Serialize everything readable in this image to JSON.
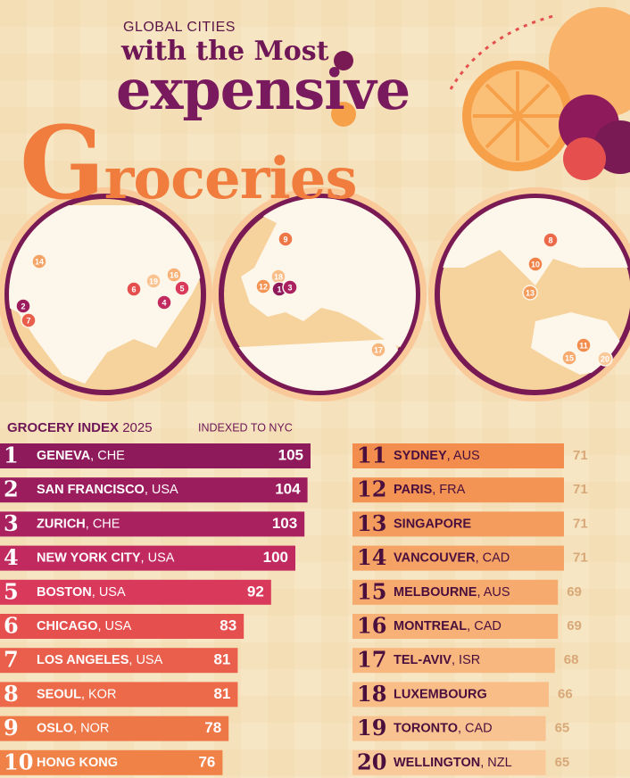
{
  "chart_data": {
    "type": "bar",
    "kicker": "GLOBAL CITIES",
    "title_line1": "with the Most",
    "title_line2": "expensive",
    "title_line3": "Groceries",
    "index_label": "GROCERY INDEX",
    "year": "2025",
    "note": "INDEXED TO NYC",
    "ranks": [
      1,
      2,
      3,
      4,
      5,
      6,
      7,
      8,
      9,
      10,
      11,
      12,
      13,
      14,
      15,
      16,
      17,
      18,
      19,
      20
    ],
    "categories": [
      "GENEVA",
      "SAN FRANCISCO",
      "ZURICH",
      "NEW YORK CITY",
      "BOSTON",
      "CHICAGO",
      "LOS ANGELES",
      "SEOUL",
      "OSLO",
      "HONG KONG",
      "SYDNEY",
      "PARIS",
      "SINGAPORE",
      "VANCOUVER",
      "MELBOURNE",
      "MONTREAL",
      "TEL-AVIV",
      "LUXEMBOURG",
      "TORONTO",
      "WELLINGTON"
    ],
    "countries": [
      ", CHE",
      ", USA",
      ", CHE",
      ", USA",
      ", USA",
      ", USA",
      ", USA",
      ", KOR",
      ", NOR",
      null,
      ", AUS",
      ", FRA",
      null,
      ", CAD",
      ", AUS",
      ", CAD",
      ", ISR",
      null,
      ", CAD",
      ", NZL"
    ],
    "values": [
      105,
      104,
      103,
      100,
      92,
      83,
      81,
      81,
      78,
      76,
      71,
      71,
      71,
      71,
      69,
      69,
      68,
      66,
      65,
      65
    ],
    "colors": [
      "#8e1a5c",
      "#9c1d5e",
      "#aa2160",
      "#c02a5e",
      "#d9395a",
      "#e5504f",
      "#ea5f4c",
      "#ec6a4a",
      "#ee7748",
      "#f08247",
      "#f28d4e",
      "#f39455",
      "#f49c5d",
      "#f5a365",
      "#f6aa6d",
      "#f7b176",
      "#f8b77f",
      "#f9bd88",
      "#f9c391",
      "#fac99a"
    ],
    "map_pins": [
      [
        14,
        2,
        7,
        6,
        19,
        16,
        5,
        4
      ],
      [
        9,
        18,
        12,
        1,
        3,
        17
      ],
      [
        8,
        10,
        13,
        11,
        15,
        20
      ]
    ]
  }
}
